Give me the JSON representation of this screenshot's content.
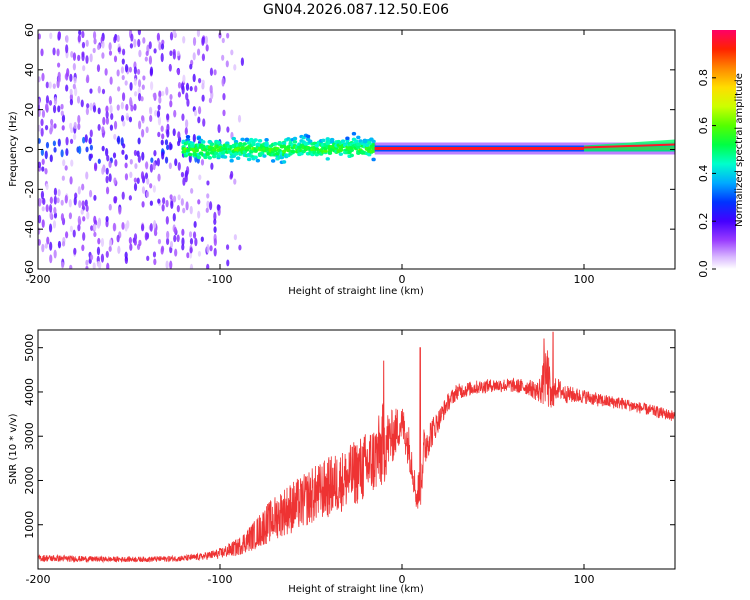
{
  "title": "GN04.2026.087.12.50.E06",
  "chart_data": [
    {
      "type": "heatmap",
      "name": "spectrogram",
      "xlabel": "Height of straight line (km)",
      "ylabel": "Frequency (Hz)",
      "xlim": [
        -200,
        150
      ],
      "ylim": [
        -60,
        60
      ],
      "xticks": [
        -200,
        -100,
        0,
        100
      ],
      "yticks": [
        60,
        40,
        20,
        0,
        -20,
        -40,
        -60
      ],
      "description_regions": [
        {
          "x_from": -200,
          "x_to": -85,
          "freq_spread": 60,
          "amplitude": 0.15
        },
        {
          "x_from": -120,
          "x_to": -15,
          "freq_spread": 8,
          "amplitude": 0.35
        },
        {
          "x_from": -15,
          "x_to": 150,
          "freq_spread": 2,
          "amplitude": 0.95
        }
      ],
      "colorbar": {
        "label": "Normalized spectral amplitude",
        "range": [
          0,
          1
        ],
        "ticks": [
          0.0,
          0.2,
          0.4,
          0.6,
          0.8
        ]
      }
    },
    {
      "type": "line",
      "name": "snr",
      "xlabel": "Height of straight line (km)",
      "ylabel": "SNR (10 * v/v)",
      "xlim": [
        -200,
        150
      ],
      "ylim": [
        0,
        5400
      ],
      "xticks": [
        -200,
        -100,
        0,
        100
      ],
      "yticks": [
        1000,
        2000,
        3000,
        4000,
        5000
      ],
      "color": "#ee3333",
      "series": [
        {
          "name": "SNR",
          "x": [
            -200,
            -180,
            -160,
            -140,
            -120,
            -110,
            -100,
            -90,
            -80,
            -75,
            -70,
            -65,
            -60,
            -55,
            -50,
            -45,
            -40,
            -35,
            -30,
            -25,
            -20,
            -15,
            -12,
            -10,
            -8,
            -5,
            -2,
            0,
            2,
            5,
            8,
            10,
            12,
            15,
            18,
            20,
            25,
            30,
            40,
            50,
            60,
            70,
            75,
            80,
            82,
            85,
            90,
            100,
            110,
            120,
            130,
            140,
            150
          ],
          "y": [
            250,
            230,
            220,
            220,
            240,
            280,
            350,
            500,
            800,
            1000,
            1150,
            1300,
            1400,
            1500,
            1650,
            1750,
            1850,
            1950,
            2050,
            2200,
            2300,
            2500,
            2650,
            2850,
            2900,
            3000,
            3200,
            3300,
            3050,
            2550,
            1600,
            1900,
            2700,
            3000,
            3200,
            3350,
            3750,
            4000,
            4100,
            4150,
            4150,
            4100,
            4000,
            4350,
            3800,
            4100,
            3950,
            3900,
            3800,
            3750,
            3650,
            3550,
            3450
          ],
          "noise": [
            80,
            70,
            60,
            60,
            70,
            80,
            120,
            200,
            350,
            450,
            500,
            550,
            600,
            600,
            650,
            650,
            700,
            700,
            700,
            750,
            800,
            800,
            900,
            1000,
            700,
            600,
            500,
            400,
            500,
            500,
            300,
            700,
            500,
            400,
            300,
            250,
            200,
            180,
            160,
            150,
            160,
            180,
            250,
            700,
            400,
            250,
            200,
            160,
            150,
            140,
            130,
            130,
            130
          ]
        }
      ],
      "spikes": [
        {
          "x": -10,
          "y": 4700
        },
        {
          "x": 10,
          "y": 5000
        },
        {
          "x": 78,
          "y": 5200
        },
        {
          "x": 83,
          "y": 5350
        }
      ]
    }
  ]
}
